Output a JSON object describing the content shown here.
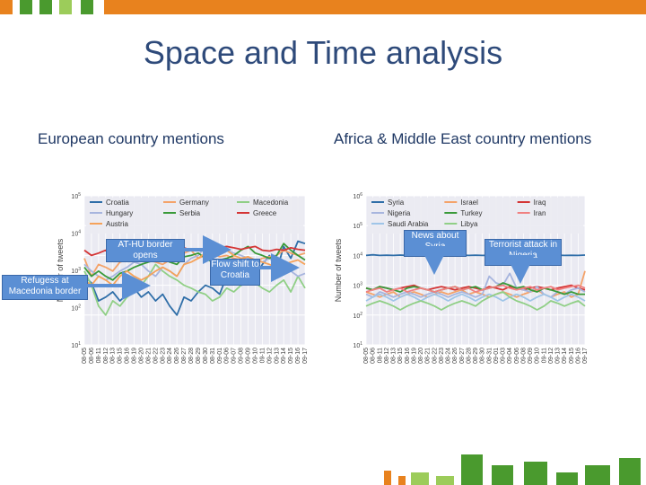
{
  "slide": {
    "title": "Space and Time analysis",
    "left_heading": "European country mentions",
    "right_heading": "Africa & Middle East country mentions"
  },
  "colors": {
    "accent_orange": "#e8821e",
    "accent_green": "#4a9a2e",
    "light_green": "#9ccc5a",
    "title_blue": "#2e4a7a",
    "callout_blue": "#5b8fd4"
  },
  "callouts": {
    "left": [
      {
        "text": "AT-HU border opens"
      },
      {
        "text": "Refugess at Macedonia border"
      },
      {
        "text": "Flow shift to Croatia"
      }
    ],
    "right": [
      {
        "text": "News about Syria"
      },
      {
        "text": "Terrorist attack in Nigeria"
      }
    ]
  },
  "chart_data": [
    {
      "type": "line",
      "ylabel": "Number of tweets",
      "yscale": "log",
      "ylim": [
        1,
        100000
      ],
      "yticks": [
        "10^1",
        "10^2",
        "10^3",
        "10^4",
        "10^5"
      ],
      "grid": true,
      "legend": "top",
      "categories": [
        "08-05",
        "08-06",
        "08-11",
        "08-12",
        "08-13",
        "08-15",
        "08-16",
        "08-19",
        "08-20",
        "08-21",
        "08-22",
        "08-23",
        "08-24",
        "08-26",
        "08-27",
        "08-28",
        "08-29",
        "08-30",
        "08-31",
        "09-01",
        "09-06",
        "09-07",
        "09-08",
        "09-09",
        "09-10",
        "09-11",
        "09-12",
        "09-13",
        "09-14",
        "09-15",
        "09-16",
        "09-17"
      ],
      "series": [
        {
          "name": "Croatia",
          "color": "#2f6ea8",
          "values": [
            200,
            120,
            30,
            40,
            60,
            30,
            50,
            80,
            40,
            60,
            30,
            50,
            20,
            10,
            40,
            30,
            60,
            100,
            80,
            50,
            200,
            150,
            100,
            120,
            200,
            500,
            1000,
            300,
            2000,
            800,
            3000,
            2500
          ]
        },
        {
          "name": "Germany",
          "color": "#f4a36a",
          "values": [
            800,
            200,
            500,
            400,
            300,
            600,
            700,
            900,
            800,
            700,
            600,
            500,
            700,
            1000,
            1200,
            1500,
            800,
            1000,
            1200,
            900,
            1000,
            800,
            700,
            900,
            600,
            800,
            900,
            1000,
            1500,
            1200,
            1000,
            1200
          ]
        },
        {
          "name": "Macedonia",
          "color": "#90cf86",
          "values": [
            300,
            100,
            20,
            10,
            30,
            20,
            40,
            60,
            100,
            200,
            500,
            300,
            200,
            150,
            100,
            80,
            60,
            50,
            30,
            40,
            80,
            60,
            100,
            200,
            120,
            80,
            60,
            100,
            150,
            60,
            200,
            80
          ]
        },
        {
          "name": "Hungary",
          "color": "#a7b5de",
          "values": [
            500,
            300,
            200,
            150,
            200,
            300,
            400,
            600,
            500,
            300,
            200,
            400,
            300,
            200,
            500,
            800,
            1000,
            2000,
            3000,
            2000,
            1500,
            1200,
            1000,
            800,
            700,
            600,
            800,
            500,
            400,
            300,
            200,
            250
          ]
        },
        {
          "name": "Serbia",
          "color": "#3a9a3a",
          "values": [
            400,
            200,
            300,
            200,
            150,
            250,
            300,
            400,
            500,
            600,
            700,
            800,
            600,
            500,
            900,
            1000,
            1200,
            800,
            600,
            700,
            800,
            1000,
            1500,
            2000,
            1200,
            1000,
            800,
            1000,
            2500,
            1500,
            1000,
            700
          ]
        },
        {
          "name": "Greece",
          "color": "#d43535",
          "values": [
            1500,
            1000,
            1200,
            1500,
            1200,
            1800,
            2000,
            2500,
            1800,
            2000,
            2200,
            1800,
            1500,
            1200,
            1800,
            1500,
            1600,
            1700,
            1500,
            1800,
            2000,
            1800,
            1600,
            1800,
            2000,
            1500,
            1400,
            1600,
            1500,
            1800,
            1600,
            1500
          ]
        },
        {
          "name": "Austria",
          "color": "#f5a25a",
          "values": [
            150,
            100,
            200,
            150,
            100,
            200,
            300,
            200,
            150,
            200,
            300,
            400,
            300,
            200,
            500,
            600,
            800,
            1200,
            2500,
            2000,
            1500,
            1000,
            800,
            900,
            700,
            600,
            500,
            400,
            500,
            600,
            700,
            500
          ]
        }
      ]
    },
    {
      "type": "line",
      "ylabel": "Number of tweets",
      "yscale": "log",
      "ylim": [
        10,
        1000000
      ],
      "yticks": [
        "10^1",
        "10^2",
        "10^3",
        "10^4",
        "10^5",
        "10^6"
      ],
      "grid": true,
      "legend": "top",
      "categories": [
        "08-05",
        "08-06",
        "08-11",
        "08-12",
        "08-13",
        "08-15",
        "08-16",
        "08-19",
        "08-20",
        "08-21",
        "08-22",
        "08-23",
        "08-24",
        "08-26",
        "08-27",
        "08-28",
        "08-29",
        "08-30",
        "08-31",
        "09-01",
        "09-03",
        "09-04",
        "09-06",
        "09-08",
        "09-09",
        "09-10",
        "09-11",
        "09-12",
        "09-13",
        "09-14",
        "09-15",
        "09-16",
        "09-17"
      ],
      "series": [
        {
          "name": "Syria",
          "color": "#2f6ea8",
          "values": [
            10000,
            10500,
            10000,
            10200,
            10000,
            10300,
            10000,
            10100,
            10000,
            30000,
            10000,
            10200,
            10000,
            10100,
            10300,
            10000,
            10200,
            10000,
            10100,
            10000,
            10200,
            10000,
            10100,
            10000,
            10300,
            10000,
            10100,
            10000,
            10200,
            10000,
            10100,
            10000,
            10300
          ]
        },
        {
          "name": "Israel",
          "color": "#f4a36a",
          "values": [
            600,
            500,
            400,
            500,
            600,
            400,
            500,
            600,
            500,
            400,
            500,
            600,
            500,
            600,
            700,
            500,
            600,
            500,
            400,
            500,
            600,
            500,
            400,
            500,
            600,
            700,
            500,
            400,
            500,
            600,
            400,
            500,
            3000
          ]
        },
        {
          "name": "Iraq",
          "color": "#d43535",
          "values": [
            800,
            700,
            900,
            800,
            700,
            800,
            900,
            1000,
            800,
            700,
            800,
            900,
            800,
            700,
            800,
            900,
            800,
            700,
            900,
            800,
            700,
            900,
            800,
            700,
            800,
            900,
            800,
            700,
            800,
            900,
            1000,
            800,
            700
          ]
        },
        {
          "name": "Nigeria",
          "color": "#a7b5de",
          "values": [
            500,
            400,
            600,
            500,
            400,
            500,
            600,
            500,
            400,
            500,
            600,
            500,
            400,
            500,
            600,
            500,
            400,
            500,
            2000,
            1200,
            1000,
            2500,
            800,
            700,
            600,
            900,
            500,
            400,
            600,
            500,
            700,
            800,
            600
          ]
        },
        {
          "name": "Turkey",
          "color": "#3a9a3a",
          "values": [
            800,
            700,
            900,
            800,
            700,
            600,
            800,
            900,
            800,
            700,
            600,
            700,
            800,
            900,
            700,
            800,
            900,
            700,
            800,
            900,
            1200,
            1000,
            800,
            900,
            700,
            600,
            800,
            700,
            600,
            500,
            600,
            500,
            500
          ]
        },
        {
          "name": "Iran",
          "color": "#f08080",
          "values": [
            600,
            700,
            800,
            600,
            700,
            800,
            600,
            700,
            800,
            700,
            600,
            700,
            800,
            900,
            700,
            800,
            600,
            700,
            800,
            900,
            1000,
            800,
            700,
            800,
            900,
            700,
            800,
            900,
            700,
            800,
            900,
            1000,
            800
          ]
        },
        {
          "name": "Saudi Arabia",
          "color": "#9fc5e8",
          "values": [
            300,
            400,
            500,
            400,
            300,
            400,
            500,
            400,
            300,
            400,
            500,
            400,
            300,
            400,
            500,
            400,
            300,
            400,
            500,
            400,
            300,
            400,
            500,
            400,
            300,
            400,
            500,
            400,
            300,
            400,
            500,
            400,
            300
          ]
        },
        {
          "name": "Libya",
          "color": "#90cf86",
          "values": [
            200,
            250,
            300,
            250,
            200,
            150,
            200,
            250,
            300,
            250,
            200,
            150,
            200,
            250,
            300,
            250,
            200,
            300,
            400,
            500,
            600,
            400,
            300,
            250,
            200,
            150,
            200,
            300,
            250,
            200,
            250,
            300,
            200
          ]
        }
      ]
    }
  ]
}
